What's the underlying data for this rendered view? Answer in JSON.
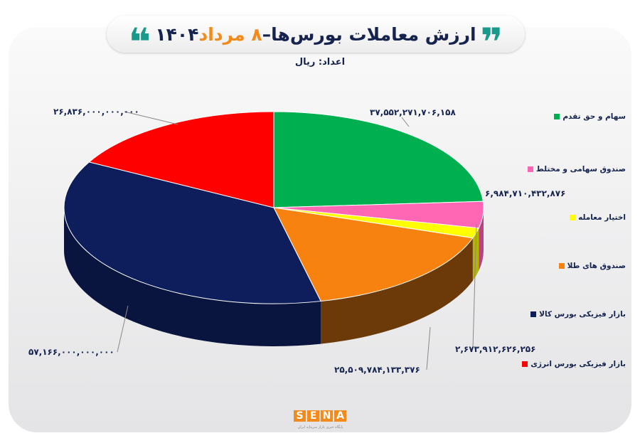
{
  "header": {
    "title_main": "ارزش معاملات بورس‌ها–",
    "title_date": "۸ مرداد",
    "title_year": "۱۴۰۴",
    "unit": "اعداد: ریال",
    "quote_open": "❞",
    "quote_close": "❝"
  },
  "chart_data": {
    "type": "pie",
    "style": "3d",
    "legend_placement": "right",
    "series": [
      {
        "name": "سهام و حق تقدم",
        "value": 37552271706158,
        "label": "۳۷,۵۵۲,۲۷۱,۷۰۶,۱۵۸",
        "color": "#00b050",
        "side": "#007a38"
      },
      {
        "name": "صندوق سهامی و مختلط",
        "value": 6984710432876,
        "label": "۶,۹۸۴,۷۱۰,۴۳۲,۸۷۶",
        "color": "#ff66b3",
        "side": "#b8447f"
      },
      {
        "name": "اختیار معامله",
        "value": 2673912626256,
        "label": "۲,۶۷۳,۹۱۲,۶۲۶,۲۵۶",
        "color": "#ffff00",
        "side": "#b5b500"
      },
      {
        "name": "صندوق های طلا",
        "value": 25509784133376,
        "label": "۲۵,۵۰۹,۷۸۴,۱۳۳,۳۷۶",
        "color": "#f7820f",
        "side": "#6b3a08"
      },
      {
        "name": "بازار فیزیکی بورس کالا",
        "value": 57166000000000,
        "label": "۵۷,۱۶۶,۰۰۰,۰۰۰,۰۰۰",
        "color": "#0e1e5c",
        "side": "#0a153f"
      },
      {
        "name": "بازار فیزیکی بورس انرژی",
        "value": 26836000000000,
        "label": "۲۶,۸۳۶,۰۰۰,۰۰۰,۰۰۰",
        "color": "#ff0000",
        "side": "#a00000"
      }
    ]
  },
  "logo": {
    "text": "SENA",
    "letters": [
      "S",
      "E",
      "N",
      "A"
    ],
    "subtitle": "پایگاه خبری بازار سرمایه ایران"
  }
}
